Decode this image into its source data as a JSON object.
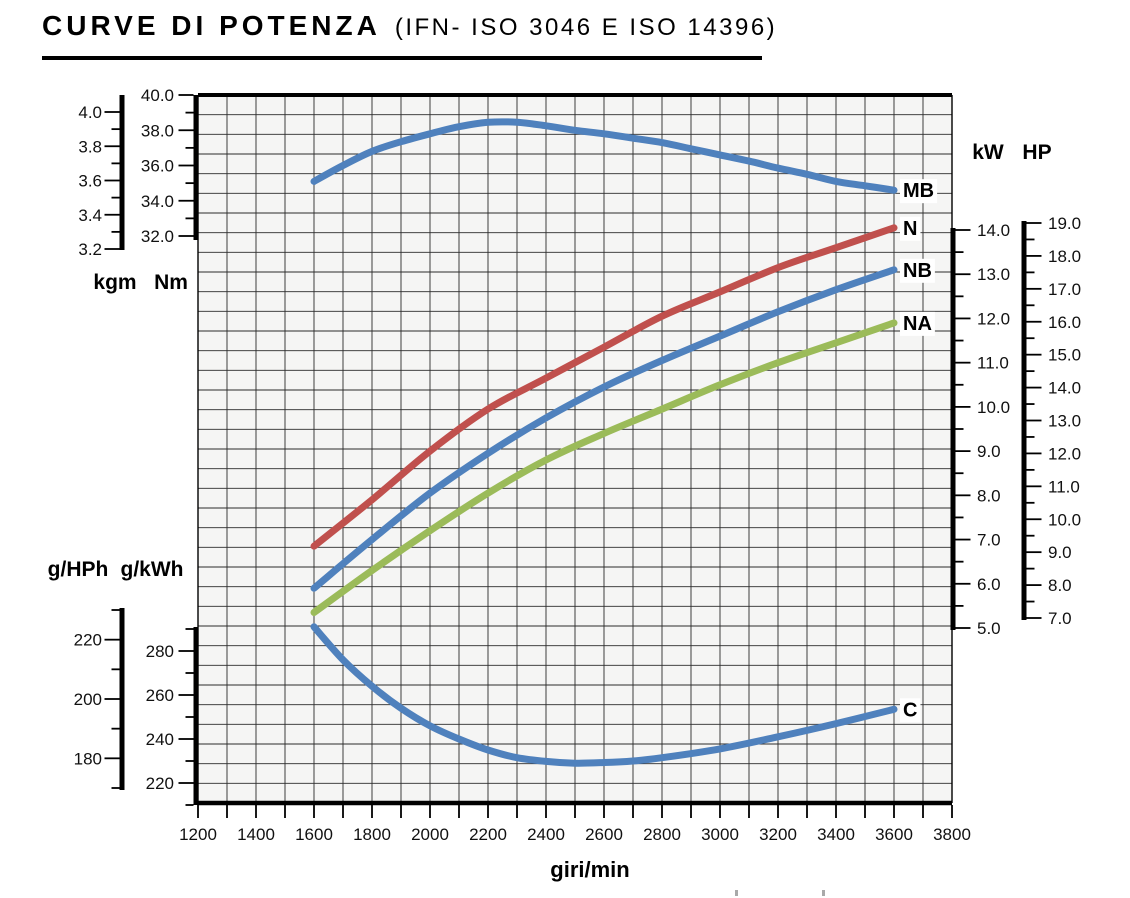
{
  "header": {
    "title": "CURVE DI POTENZA",
    "subtitle": "(IFN- ISO 3046 E ISO 14396)"
  },
  "chart_data": {
    "type": "line",
    "title": "CURVE DI POTENZA (IFN- ISO 3046 E ISO 14396)",
    "grid": true,
    "legend_position": "curve-end-labels",
    "x_axis": {
      "unit": "giri/min",
      "min": 1200,
      "max": 3800,
      "major_step": 200,
      "minor_step": 100,
      "decimals": 0
    },
    "y_axes": [
      {
        "id": "kgm",
        "unit": "kgm",
        "min": 3.2,
        "max": 4.0,
        "major_step": 0.2,
        "minor_step": 0.1,
        "decimals": 1
      },
      {
        "id": "nm",
        "unit": "Nm",
        "min": 32,
        "max": 40,
        "major_step": 2,
        "minor_step": 1,
        "decimals": 1
      },
      {
        "id": "kw",
        "unit": "kW",
        "min": 5,
        "max": 14,
        "major_step": 1,
        "minor_step": 0.5,
        "decimals": 1
      },
      {
        "id": "hp",
        "unit": "HP",
        "min": 7,
        "max": 19,
        "major_step": 1,
        "minor_step": 0.5,
        "decimals": 1
      },
      {
        "id": "ghph",
        "unit": "g/HPh",
        "min": 170,
        "max": 230,
        "major_step": 20,
        "minor_step": 10,
        "decimals": 0
      },
      {
        "id": "gkwh",
        "unit": "g/kWh",
        "min": 210,
        "max": 290,
        "major_step": 20,
        "minor_step": 10,
        "decimals": 0
      }
    ],
    "series": [
      {
        "name": "MB",
        "axis": "nm",
        "color": "#4F81BD",
        "description": "torque curve",
        "points": [
          [
            1600,
            35.1
          ],
          [
            1700,
            36.0
          ],
          [
            1800,
            36.8
          ],
          [
            1900,
            37.35
          ],
          [
            2000,
            37.8
          ],
          [
            2100,
            38.2
          ],
          [
            2200,
            38.45
          ],
          [
            2300,
            38.45
          ],
          [
            2400,
            38.25
          ],
          [
            2500,
            38.0
          ],
          [
            2600,
            37.8
          ],
          [
            2700,
            37.55
          ],
          [
            2800,
            37.3
          ],
          [
            2900,
            36.95
          ],
          [
            3000,
            36.6
          ],
          [
            3100,
            36.25
          ],
          [
            3200,
            35.85
          ],
          [
            3300,
            35.5
          ],
          [
            3400,
            35.1
          ],
          [
            3500,
            34.85
          ],
          [
            3600,
            34.6
          ]
        ]
      },
      {
        "name": "N",
        "axis": "kw",
        "color": "#C0504D",
        "description": "power curve",
        "points": [
          [
            1600,
            6.85
          ],
          [
            1800,
            7.9
          ],
          [
            2000,
            9.0
          ],
          [
            2200,
            9.95
          ],
          [
            2400,
            10.65
          ],
          [
            2600,
            11.35
          ],
          [
            2800,
            12.05
          ],
          [
            3000,
            12.6
          ],
          [
            3200,
            13.15
          ],
          [
            3400,
            13.6
          ],
          [
            3600,
            14.05
          ]
        ]
      },
      {
        "name": "NB",
        "axis": "kw",
        "color": "#4F81BD",
        "description": "power curve",
        "points": [
          [
            1600,
            5.9
          ],
          [
            1800,
            7.0
          ],
          [
            2000,
            8.05
          ],
          [
            2200,
            8.95
          ],
          [
            2400,
            9.75
          ],
          [
            2600,
            10.45
          ],
          [
            2800,
            11.05
          ],
          [
            3000,
            11.6
          ],
          [
            3200,
            12.15
          ],
          [
            3400,
            12.65
          ],
          [
            3600,
            13.1
          ]
        ]
      },
      {
        "name": "NA",
        "axis": "kw",
        "color": "#9BBB59",
        "description": "power curve",
        "points": [
          [
            1600,
            5.35
          ],
          [
            1800,
            6.3
          ],
          [
            2000,
            7.2
          ],
          [
            2200,
            8.05
          ],
          [
            2400,
            8.8
          ],
          [
            2600,
            9.4
          ],
          [
            2800,
            9.95
          ],
          [
            3000,
            10.5
          ],
          [
            3200,
            11.0
          ],
          [
            3400,
            11.45
          ],
          [
            3600,
            11.9
          ]
        ]
      },
      {
        "name": "C",
        "axis": "gkwh",
        "color": "#4F81BD",
        "description": "specific fuel consumption curve",
        "points": [
          [
            1600,
            291
          ],
          [
            1700,
            276
          ],
          [
            1800,
            264
          ],
          [
            1900,
            254
          ],
          [
            2000,
            246
          ],
          [
            2100,
            240
          ],
          [
            2200,
            235
          ],
          [
            2300,
            231.5
          ],
          [
            2400,
            229.8
          ],
          [
            2500,
            229
          ],
          [
            2600,
            229.3
          ],
          [
            2700,
            230
          ],
          [
            2800,
            231.5
          ],
          [
            3000,
            235.5
          ],
          [
            3200,
            241
          ],
          [
            3400,
            247
          ],
          [
            3600,
            253.5
          ]
        ]
      }
    ]
  }
}
